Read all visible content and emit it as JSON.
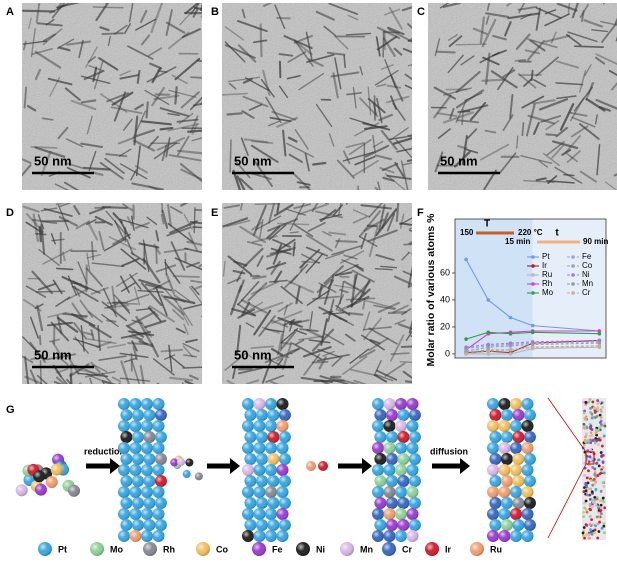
{
  "panels": [
    {
      "label": "A",
      "scale_bar": "50 nm"
    },
    {
      "label": "B",
      "scale_bar": "50 nm"
    },
    {
      "label": "C",
      "scale_bar": "50 nm"
    },
    {
      "label": "D",
      "scale_bar": "50 nm"
    },
    {
      "label": "E",
      "scale_bar": "50 nm"
    }
  ],
  "chart_data": {
    "label": "F",
    "type": "line",
    "y_label": "Molar ratio of various atoms %",
    "annotations": {
      "temp_start": "150",
      "temp_end": "220 °C",
      "temp_symbol": "T",
      "time_start": "15 min",
      "time_end": "90 min",
      "time_symbol": "t"
    },
    "x": [
      0,
      1,
      2,
      3,
      6
    ],
    "xlim": [
      -0.5,
      6.3
    ],
    "ylim": [
      -3,
      100
    ],
    "yticks": [
      0,
      20,
      40,
      60
    ],
    "series": [
      {
        "name": "Pt",
        "color": "#6f9be8",
        "dashed": false,
        "values": [
          70,
          40,
          27,
          21,
          17
        ]
      },
      {
        "name": "Ir",
        "color": "#b0202e",
        "dashed": false,
        "values": [
          1,
          2,
          1,
          8,
          10
        ]
      },
      {
        "name": "Ru",
        "color": "#b8b8b8",
        "dashed": false,
        "values": [
          0,
          0,
          0,
          4,
          5
        ]
      },
      {
        "name": "Rh",
        "color": "#d040d0",
        "dashed": false,
        "values": [
          3,
          15,
          16,
          17,
          17
        ]
      },
      {
        "name": "Mo",
        "color": "#3a9a4a",
        "dashed": false,
        "values": [
          11,
          16,
          15,
          16,
          15
        ]
      },
      {
        "name": "Fe",
        "color": "#a0a0d8",
        "dashed": true,
        "values": [
          4,
          6,
          7,
          8,
          9
        ]
      },
      {
        "name": "Co",
        "color": "#9aa0b8",
        "dashed": true,
        "values": [
          2,
          5,
          6,
          7,
          8
        ]
      },
      {
        "name": "Ni",
        "color": "#a080c8",
        "dashed": true,
        "values": [
          5,
          7,
          8,
          9,
          10
        ]
      },
      {
        "name": "Mn",
        "color": "#9a9a9a",
        "dashed": true,
        "values": [
          1,
          3,
          3,
          5,
          6
        ]
      },
      {
        "name": "Cr",
        "color": "#c8b090",
        "dashed": true,
        "values": [
          0,
          2,
          3,
          5,
          6
        ]
      }
    ]
  },
  "schematic": {
    "label": "G",
    "steps": [
      "reduction",
      "diffusion"
    ],
    "legend": [
      {
        "name": "Pt",
        "color": "#3aa7e0"
      },
      {
        "name": "Mo",
        "color": "#8fd19a"
      },
      {
        "name": "Rh",
        "color": "#8a8a95"
      },
      {
        "name": "Co",
        "color": "#f0c060"
      },
      {
        "name": "Fe",
        "color": "#9b3fd0"
      },
      {
        "name": "Ni",
        "color": "#222222"
      },
      {
        "name": "Mn",
        "color": "#d8b8e8"
      },
      {
        "name": "Cr",
        "color": "#3a6ac0"
      },
      {
        "name": "Ir",
        "color": "#d02030"
      },
      {
        "name": "Ru",
        "color": "#f0a070"
      }
    ]
  }
}
